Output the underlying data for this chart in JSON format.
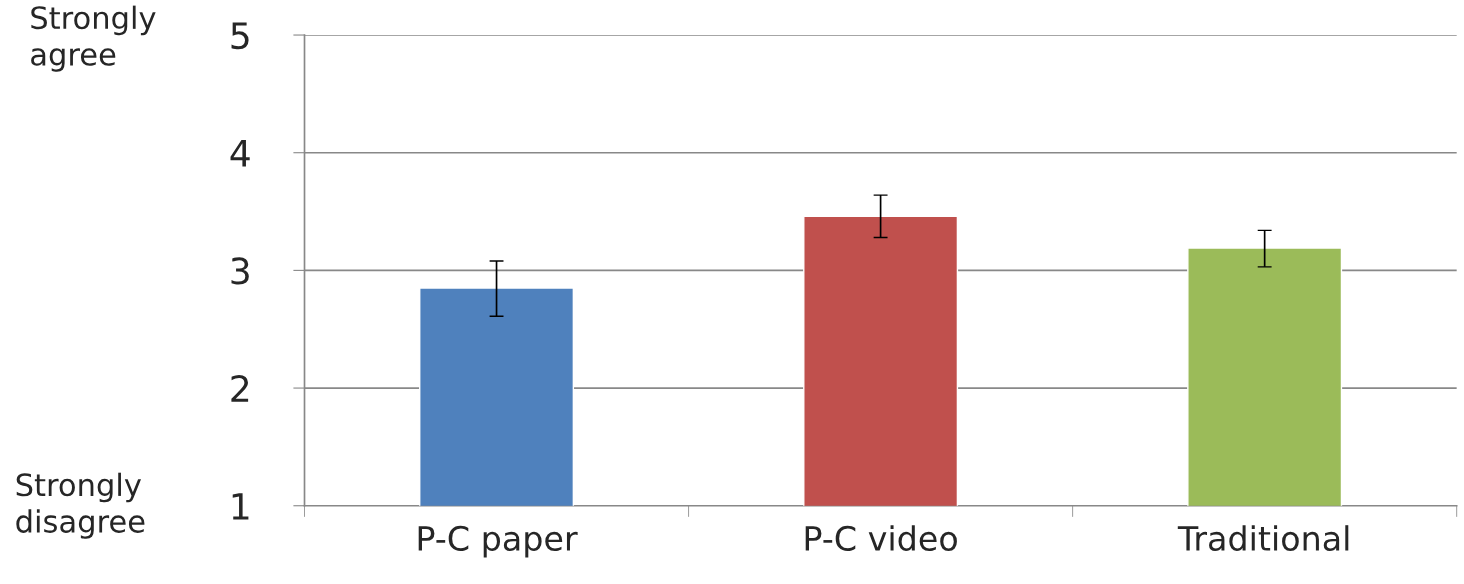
{
  "chart_data": {
    "type": "bar",
    "categories": [
      "P-C paper",
      "P-C video",
      "Traditional"
    ],
    "values": [
      2.85,
      3.46,
      3.19
    ],
    "colors": [
      "#4f81bd",
      "#c0504d",
      "#9bbb59"
    ],
    "errors": [
      [
        2.61,
        3.08
      ],
      [
        3.28,
        3.64
      ],
      [
        3.03,
        3.34
      ]
    ],
    "ylim": [
      1,
      5
    ],
    "yticks": [
      1,
      2,
      3,
      4,
      5
    ],
    "grid": "y",
    "annotations": [
      "Strongly agree",
      "Strongly disagree"
    ]
  }
}
